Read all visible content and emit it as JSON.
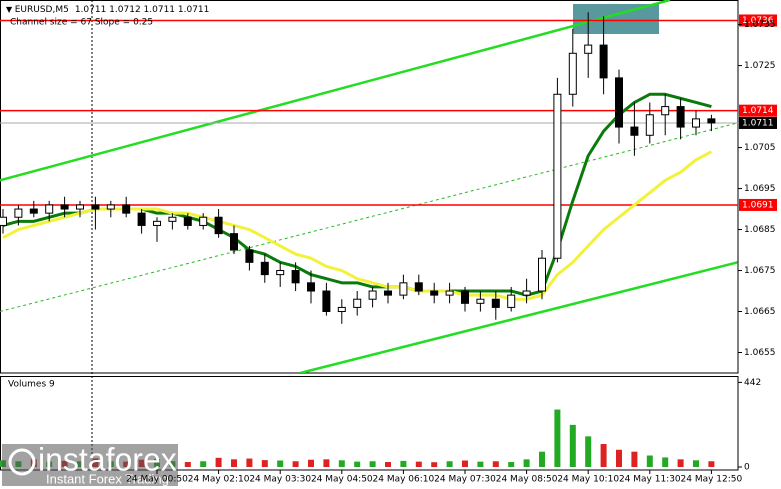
{
  "chart_data": {
    "type": "candlestick",
    "title": "EURUSD,M5",
    "ohlc_text": "1.0711 1.0712 1.0711 1.0711",
    "subtitle": "Channel size = 67 Slope = 0.25",
    "categories": [
      null,
      null,
      null,
      null,
      null,
      null,
      null,
      null,
      null,
      null,
      "24 May 00:50",
      null,
      null,
      null,
      "24 May 02:10",
      null,
      null,
      null,
      "24 May 03:30",
      null,
      null,
      null,
      "24 May 04:50",
      null,
      null,
      null,
      "24 May 06:10",
      null,
      null,
      null,
      "24 May 07:30",
      null,
      null,
      null,
      "24 May 08:50",
      null,
      null,
      null,
      "24 May 10:10",
      null,
      null,
      null,
      "24 May 11:30",
      null,
      null,
      null,
      "24 May 12:50"
    ],
    "open": [
      1.0686,
      1.0688,
      1.069,
      1.0689,
      1.0691,
      1.069,
      1.0691,
      1.069,
      1.0691,
      1.0689,
      1.0686,
      1.0687,
      1.0688,
      1.0686,
      1.0688,
      1.0684,
      1.068,
      1.0677,
      1.0674,
      1.0675,
      1.0672,
      1.067,
      1.0665,
      1.0666,
      1.0668,
      1.067,
      1.0669,
      1.0672,
      1.067,
      1.0669,
      1.067,
      1.0667,
      1.0668,
      1.0666,
      1.0669,
      1.067,
      1.0678,
      1.0718,
      1.0728,
      1.073,
      1.0722,
      1.071,
      1.0708,
      1.0713,
      1.0715,
      1.071,
      1.0712
    ],
    "high": [
      1.069,
      1.0691,
      1.0692,
      1.0692,
      1.0693,
      1.0692,
      1.0693,
      1.0692,
      1.0693,
      1.069,
      1.0688,
      1.0689,
      1.0689,
      1.0689,
      1.069,
      1.0686,
      1.0681,
      1.0679,
      1.0677,
      1.0677,
      1.0675,
      1.0672,
      1.0668,
      1.067,
      1.0671,
      1.0672,
      1.0674,
      1.0674,
      1.0672,
      1.0672,
      1.0671,
      1.067,
      1.067,
      1.0671,
      1.0673,
      1.068,
      1.0722,
      1.0734,
      1.0738,
      1.0737,
      1.0724,
      1.0716,
      1.0716,
      1.0718,
      1.0717,
      1.0714,
      1.0713
    ],
    "low": [
      1.0684,
      1.0686,
      1.0688,
      1.0687,
      1.0688,
      1.0688,
      1.0685,
      1.0688,
      1.0688,
      1.0684,
      1.0682,
      1.0685,
      1.0685,
      1.0685,
      1.0683,
      1.0679,
      1.0675,
      1.0672,
      1.0671,
      1.067,
      1.0667,
      1.0664,
      1.0662,
      1.0664,
      1.0666,
      1.0667,
      1.0668,
      1.0669,
      1.0667,
      1.0667,
      1.0665,
      1.0665,
      1.0663,
      1.0665,
      1.0667,
      1.0668,
      1.0677,
      1.0715,
      1.0722,
      1.0718,
      1.0706,
      1.0703,
      1.0706,
      1.0708,
      1.0707,
      1.0708,
      1.0709
    ],
    "close": [
      1.0688,
      1.069,
      1.0689,
      1.0691,
      1.069,
      1.0691,
      1.069,
      1.0691,
      1.0689,
      1.0686,
      1.0687,
      1.0688,
      1.0686,
      1.0688,
      1.0684,
      1.068,
      1.0677,
      1.0674,
      1.0675,
      1.0672,
      1.067,
      1.0665,
      1.0666,
      1.0668,
      1.067,
      1.0669,
      1.0672,
      1.067,
      1.0669,
      1.067,
      1.0667,
      1.0668,
      1.0666,
      1.0669,
      1.067,
      1.0678,
      1.0718,
      1.0728,
      1.073,
      1.0722,
      1.071,
      1.0708,
      1.0713,
      1.0715,
      1.071,
      1.0712,
      1.0711
    ],
    "color": "#000000",
    "ylim": [
      1.065,
      1.0741
    ],
    "yticks": [
      1.0655,
      1.0665,
      1.0675,
      1.0685,
      1.0695,
      1.0705,
      1.0725,
      1.0735
    ],
    "moving_averages": [
      {
        "color": "#0a7a0a",
        "values": [
          1.0686,
          1.0687,
          1.0687,
          1.0688,
          1.0689,
          1.0689,
          1.069,
          1.069,
          1.069,
          1.069,
          1.0689,
          1.0689,
          1.0688,
          1.0687,
          1.0685,
          1.0683,
          1.068,
          1.0679,
          1.0677,
          1.0676,
          1.0674,
          1.0673,
          1.0672,
          1.0672,
          1.0671,
          1.0671,
          1.0671,
          1.067,
          1.067,
          1.067,
          1.067,
          1.067,
          1.067,
          1.067,
          1.0669,
          1.067,
          1.068,
          1.0692,
          1.0703,
          1.0709,
          1.0713,
          1.0716,
          1.0718,
          1.0718,
          1.0717,
          1.0716,
          1.0715
        ]
      },
      {
        "color": "#f2f23a",
        "values": [
          1.0683,
          1.0685,
          1.0686,
          1.0687,
          1.0688,
          1.0689,
          1.069,
          1.069,
          1.069,
          1.069,
          1.069,
          1.0689,
          1.0689,
          1.0688,
          1.0687,
          1.0686,
          1.0685,
          1.0683,
          1.0681,
          1.0679,
          1.0678,
          1.0676,
          1.0675,
          1.0673,
          1.0672,
          1.0671,
          1.0671,
          1.067,
          1.067,
          1.067,
          1.0669,
          1.0669,
          1.0669,
          1.0668,
          1.0668,
          1.0669,
          1.0674,
          1.0677,
          1.0681,
          1.0685,
          1.0688,
          1.0691,
          1.0694,
          1.0697,
          1.0699,
          1.0702,
          1.0704
        ]
      }
    ],
    "levels": [
      {
        "value": 1.0736,
        "color": "#ff0000"
      },
      {
        "value": 1.0714,
        "color": "#ff0000"
      },
      {
        "value": 1.0691,
        "color": "#ff0000"
      },
      {
        "value": 1.0711,
        "color": "#000000"
      }
    ],
    "channel_lines": [
      {
        "color": "#22dd22",
        "dashed": false,
        "from": [
          -0.2,
          1.0697
        ],
        "to": [
          43.3,
          1.0741
        ]
      },
      {
        "color": "#22dd22",
        "dashed": false,
        "from": [
          19.3,
          1.065
        ],
        "to": [
          47.7,
          1.0677
        ]
      },
      {
        "color": "#22bb22",
        "dashed": true,
        "from": [
          -0.2,
          1.0665
        ],
        "to": [
          47.7,
          1.0711
        ]
      }
    ],
    "volume": {
      "title": "Volumes 9",
      "values": [
        35,
        30,
        40,
        28,
        32,
        30,
        45,
        30,
        28,
        38,
        42,
        30,
        26,
        30,
        48,
        40,
        44,
        36,
        34,
        30,
        38,
        40,
        35,
        28,
        30,
        26,
        32,
        28,
        25,
        30,
        34,
        28,
        30,
        26,
        40,
        80,
        300,
        220,
        160,
        120,
        90,
        80,
        60,
        50,
        40,
        35,
        30
      ],
      "ylim": [
        0,
        470
      ],
      "yticks": [
        0,
        442
      ]
    }
  },
  "watermark": {
    "brand": "instaforex",
    "tagline": "Instant Forex Trading"
  }
}
